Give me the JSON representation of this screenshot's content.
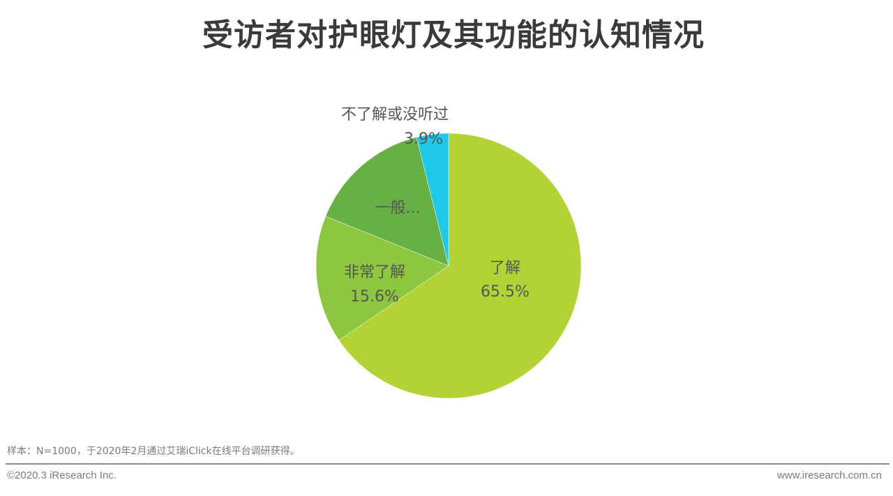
{
  "title": "受访者对护眼灯及其功能的认知情况",
  "chart_data": {
    "type": "pie",
    "title": "受访者对护眼灯及其功能的认知情况",
    "categories": [
      "了解",
      "非常了解",
      "一般",
      "不了解或没听过"
    ],
    "values": [
      65.5,
      15.6,
      15.0,
      3.9
    ],
    "colors": [
      "#b2d235",
      "#8dc63f",
      "#67b045",
      "#1ec8e6"
    ],
    "display_labels": [
      "了解",
      "非常了解",
      "一般...",
      "不了解或没听过"
    ],
    "value_labels": [
      "65.5%",
      "15.6%",
      "",
      "3.9%"
    ],
    "start_angle": "12 o'clock, clockwise",
    "legend": "none"
  },
  "labels": {
    "liaojie_name": "了解",
    "liaojie_value": "65.5%",
    "feichang_name": "非常了解",
    "feichang_value": "15.6%",
    "yiban_name": "一般...",
    "bu_name": "不了解或没听过",
    "bu_value": "3.9%"
  },
  "footer": {
    "note": "样本：N=1000，于2020年2月通过艾瑞iClick在线平台调研获得。",
    "copyright": "©2020.3 iResearch Inc.",
    "website": "www.iresearch.com.cn"
  }
}
